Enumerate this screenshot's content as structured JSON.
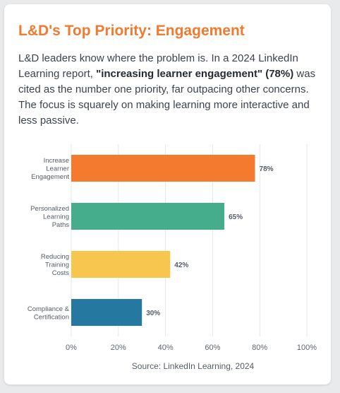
{
  "card": {
    "title": "L&D's Top Priority: Engagement",
    "desc_pre": "L&D leaders know where the problem is. In a 2024 LinkedIn Learning report, ",
    "desc_bold": "\"increasing learner engagement\" (78%)",
    "desc_post": " was cited as the number one priority, far outpacing other concerns. The focus is squarely on making learning more interactive and less passive."
  },
  "chart_data": {
    "type": "bar",
    "orientation": "horizontal",
    "categories": [
      [
        "Increase",
        "Learner",
        "Engagement"
      ],
      [
        "Personalized",
        "Learning",
        "Paths"
      ],
      [
        "Reducing",
        "Training",
        "Costs"
      ],
      [
        "Compliance &",
        "Certification"
      ]
    ],
    "values": [
      78,
      65,
      42,
      30
    ],
    "value_labels": [
      "78%",
      "65%",
      "42%",
      "30%"
    ],
    "bar_colors": [
      "#f47a2f",
      "#45ad8b",
      "#f7c64f",
      "#2579a0"
    ],
    "xlim": [
      0,
      100
    ],
    "xticks": [
      0,
      20,
      40,
      60,
      80,
      100
    ],
    "xtick_labels": [
      "0%",
      "20%",
      "40%",
      "60%",
      "80%",
      "100%"
    ],
    "grid": true,
    "source": "Source: LinkedIn Learning, 2024"
  }
}
